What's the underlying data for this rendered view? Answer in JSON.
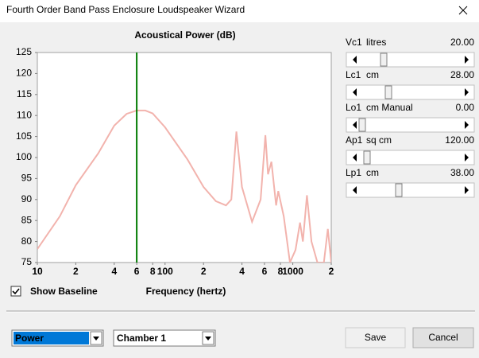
{
  "window": {
    "title": "Fourth Order Band Pass Enclosure Loudspeaker Wizard"
  },
  "chart_data": {
    "type": "line",
    "title": "Acoustical Power (dB)",
    "x_label": "Frequency (hertz)",
    "xscale": "log",
    "x": [
      10,
      15,
      20,
      30,
      40,
      50,
      60,
      70,
      80,
      100,
      150,
      200,
      250,
      300,
      330,
      362,
      400,
      480,
      560,
      610,
      640,
      680,
      740,
      770,
      850,
      950,
      1050,
      1140,
      1200,
      1290,
      1400,
      1560,
      1750,
      1880,
      2000
    ],
    "series": [
      {
        "color": "#f2b3ad",
        "values": [
          78.2,
          86,
          93.4,
          101,
          107.6,
          110.4,
          111.2,
          111.2,
          110.5,
          107.2,
          99.5,
          93,
          89.6,
          88.6,
          90,
          106.2,
          93,
          84.7,
          90,
          105.3,
          96,
          99,
          88.6,
          92,
          86,
          75,
          78,
          84.5,
          80,
          91,
          80,
          75,
          75,
          83,
          75
        ]
      }
    ],
    "marker": {
      "x": 60,
      "color": "#007a00"
    },
    "xlim": [
      10,
      2000
    ],
    "ylim": [
      75,
      125
    ],
    "xticks": [
      10,
      {
        "value": 20,
        "label": "2"
      },
      {
        "value": 40,
        "label": "4"
      },
      {
        "value": 60,
        "label": "6"
      },
      {
        "value": 80,
        "label": "8"
      },
      100,
      {
        "value": 200,
        "label": "2"
      },
      {
        "value": 400,
        "label": "4"
      },
      {
        "value": 600,
        "label": "6"
      },
      {
        "value": 800,
        "label": "8"
      },
      1000,
      {
        "value": 2000,
        "label": "2"
      }
    ],
    "yticks": [
      75,
      80,
      85,
      90,
      95,
      100,
      105,
      110,
      115,
      120,
      125
    ]
  },
  "sliders": [
    {
      "name": "Vc1",
      "unit": "litres",
      "value": "20.00"
    },
    {
      "name": "Lc1",
      "unit": "cm",
      "value": "28.00"
    },
    {
      "name": "Lo1",
      "unit": "cm  Manual",
      "value": "0.00"
    },
    {
      "name": "Ap1",
      "unit": "sq cm",
      "value": "120.00"
    },
    {
      "name": "Lp1",
      "unit": "cm",
      "value": "38.00"
    }
  ],
  "checkbox": {
    "label": "Show Baseline",
    "checked": true
  },
  "dropdowns": [
    "Power",
    "Chamber 1"
  ],
  "buttons": [
    "Save",
    "Cancel"
  ]
}
